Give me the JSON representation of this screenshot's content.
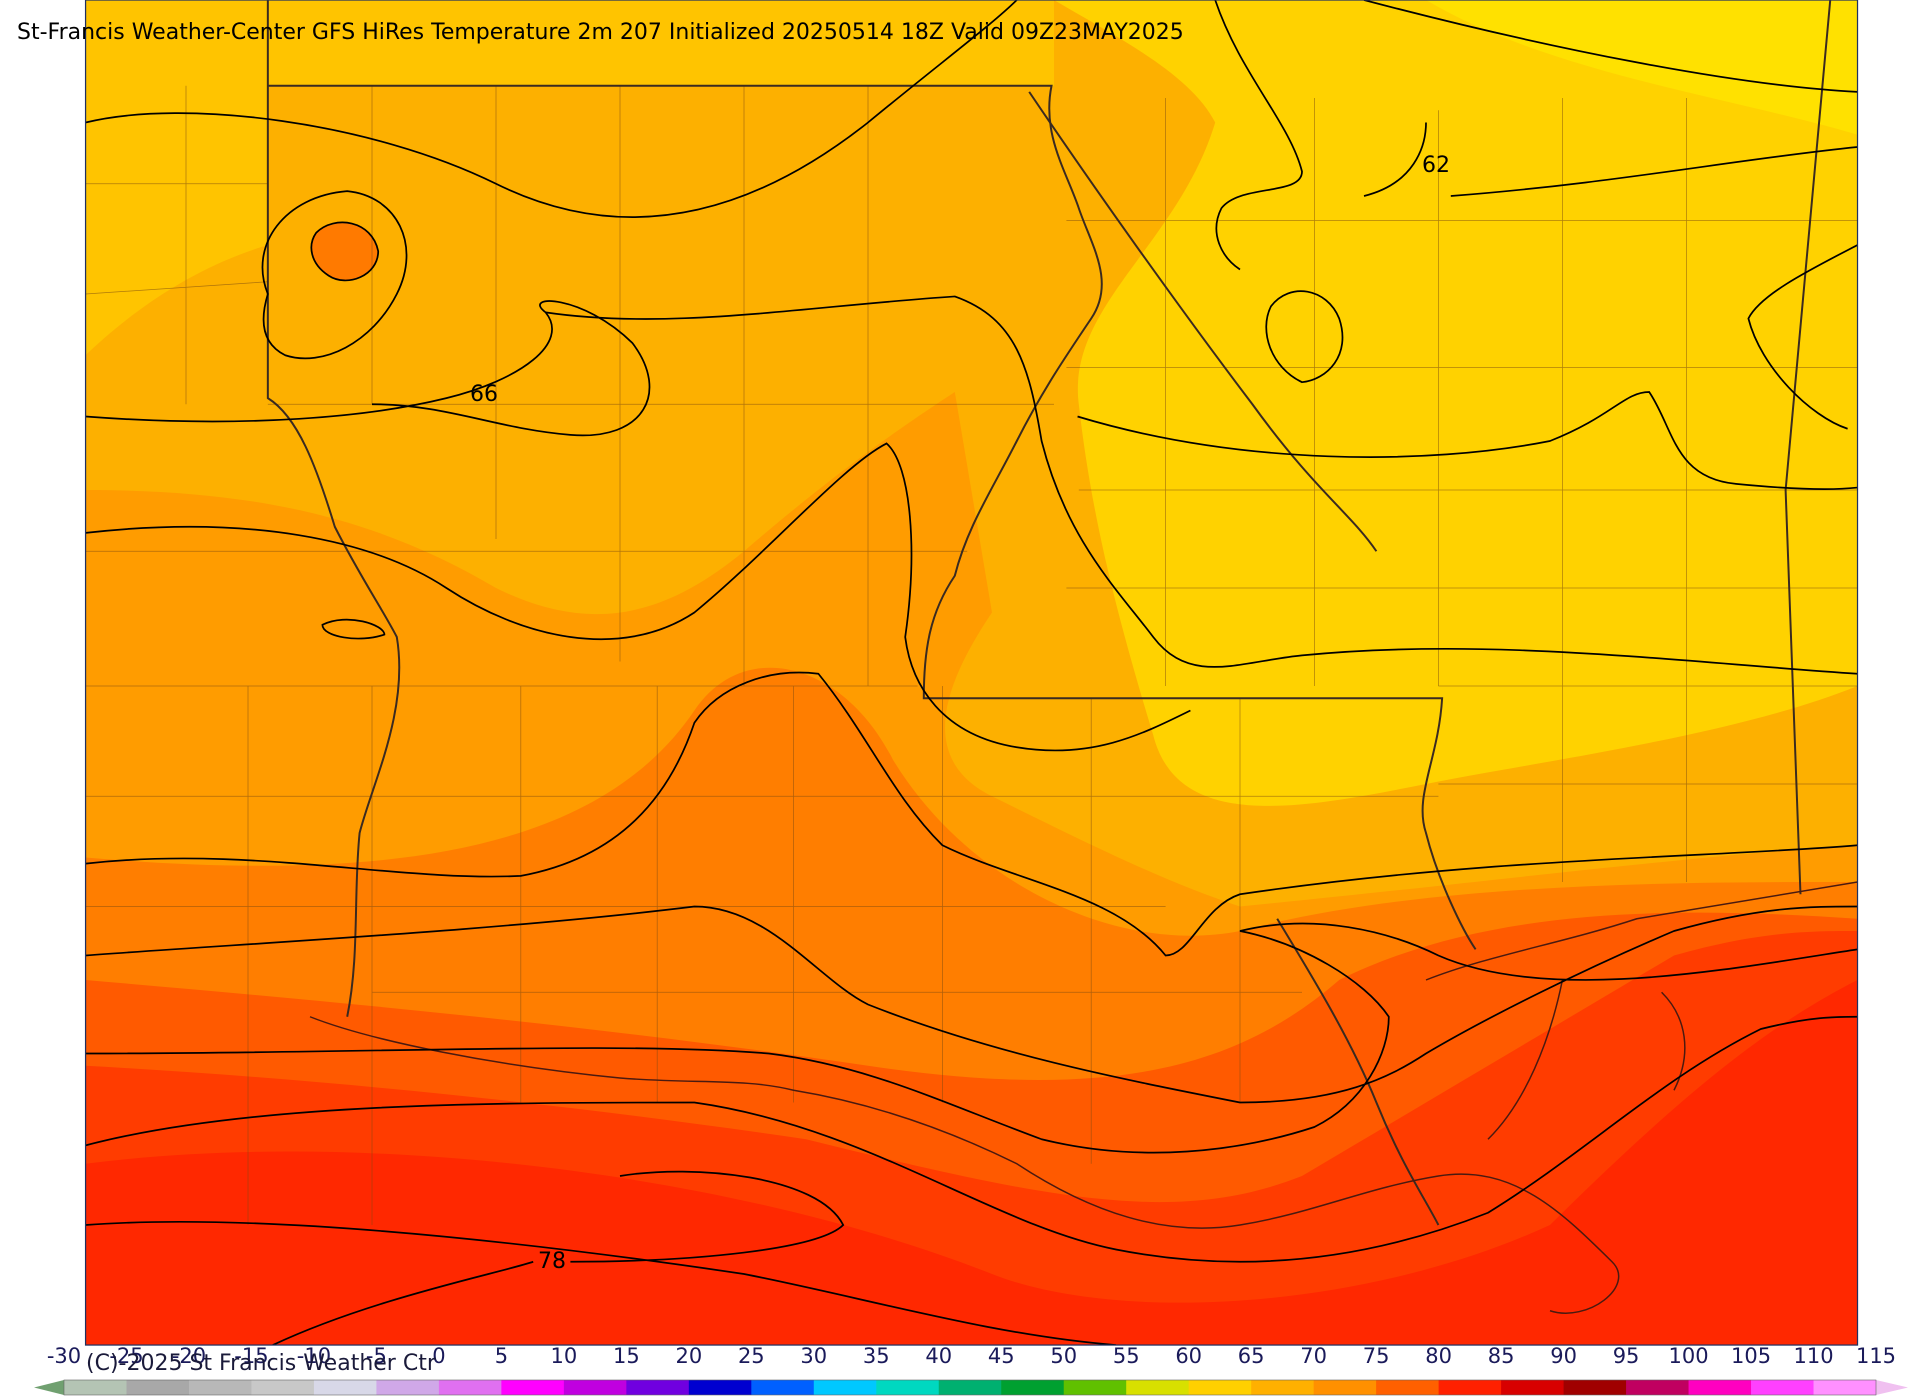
{
  "title": "St-Francis Weather-Center GFS HiRes Temperature 2m  207 Initialized 20250514 18Z Valid 09Z23MAY2025",
  "contour_labels": [
    "62",
    "66",
    "78"
  ],
  "copyright": "(C)-2025 St Francis Weather Ctr",
  "colorbar": {
    "ticks": [
      -30,
      -25,
      -20,
      -15,
      -10,
      -5,
      0,
      5,
      10,
      15,
      20,
      25,
      30,
      35,
      40,
      45,
      50,
      55,
      60,
      65,
      70,
      75,
      80,
      85,
      90,
      95,
      100,
      105,
      110,
      115
    ],
    "colors": [
      "#b4c4b4",
      "#a8a8a8",
      "#b8b8b8",
      "#c8c8c8",
      "#d8d8e8",
      "#d0a8e8",
      "#e070f0",
      "#ff00ff",
      "#c000e0",
      "#7000e0",
      "#0000d0",
      "#0060ff",
      "#00c8ff",
      "#00d8c0",
      "#00b070",
      "#00a030",
      "#60c000",
      "#d8e000",
      "#ffd000",
      "#ffb000",
      "#ff9000",
      "#ff6000",
      "#ff2000",
      "#d80000",
      "#a00000",
      "#c00060",
      "#ff00c0",
      "#ff40ff",
      "#ff90ff"
    ],
    "under_color": "#70a070",
    "over_color": "#f0c0f0"
  }
}
